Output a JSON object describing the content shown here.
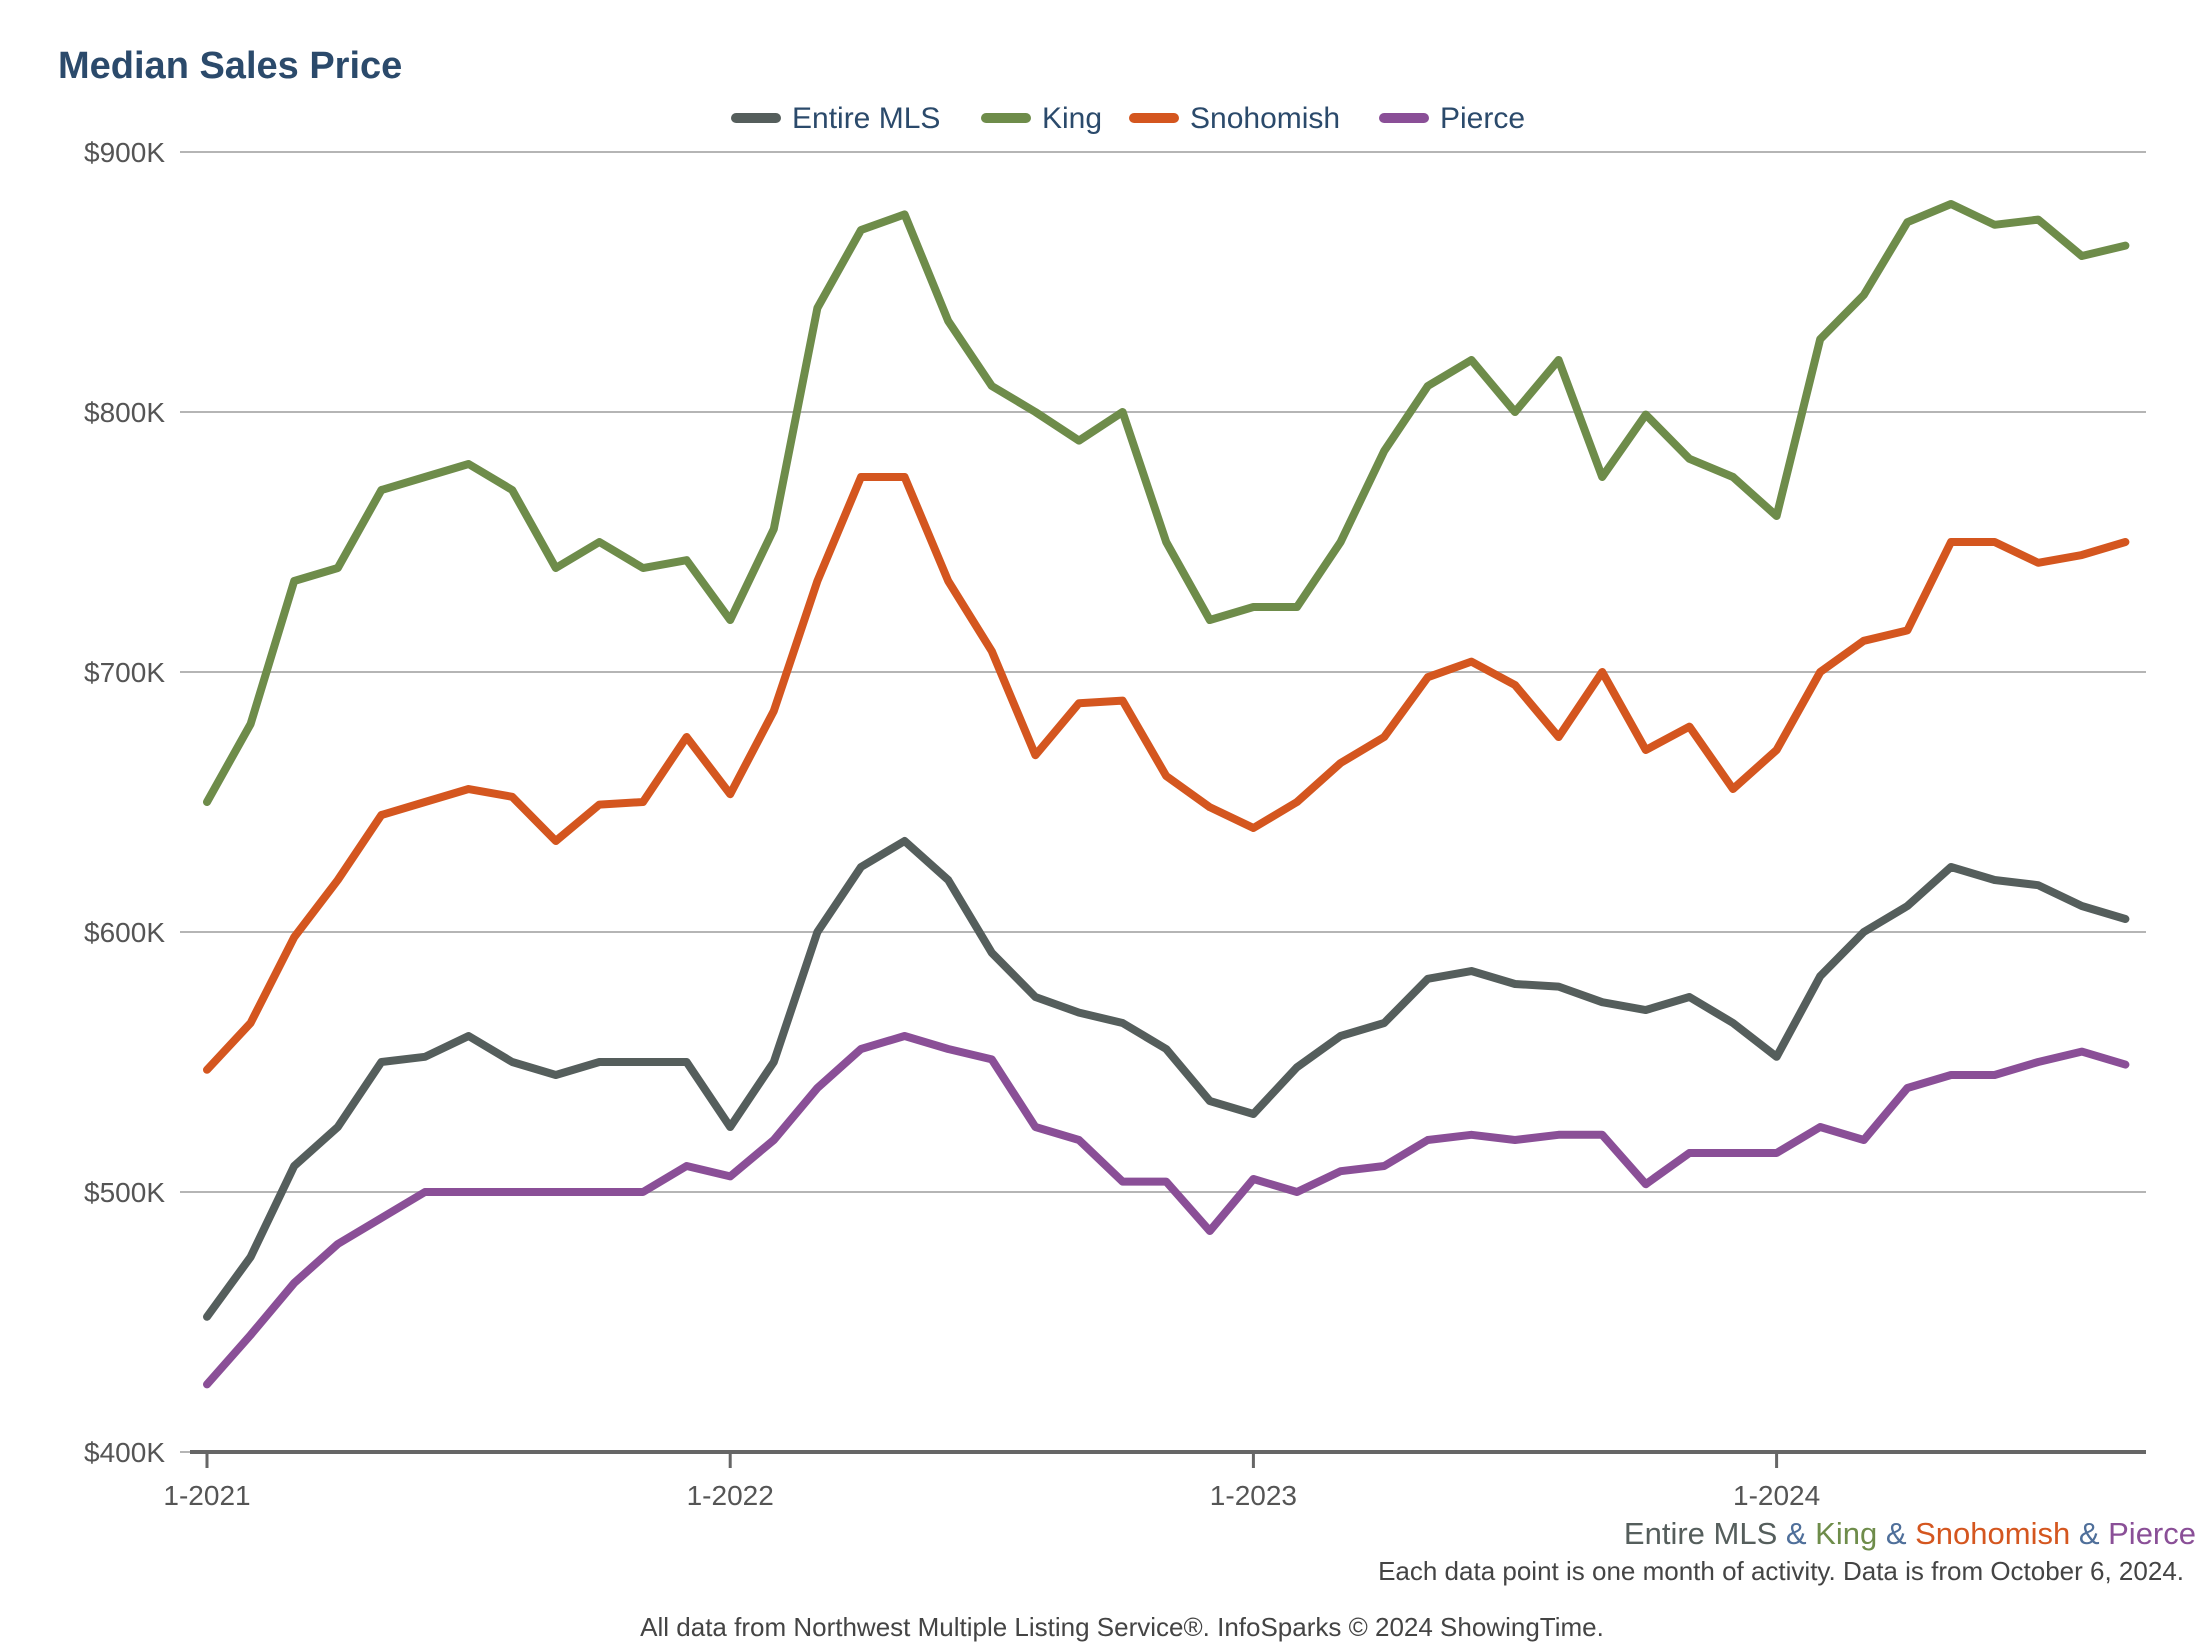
{
  "colors": {
    "title": "#2b4a6b",
    "grid": "#b5b5b5",
    "axis": "#666666",
    "amp": "#4f6f9a"
  },
  "chart_data": {
    "type": "line",
    "title": "Median Sales Price",
    "xlabel": "",
    "ylabel": "",
    "x_ticks": [
      "1-2021",
      "1-2022",
      "1-2023",
      "1-2024"
    ],
    "y_ticks": [
      "$900K",
      "$800K",
      "$700K",
      "$600K",
      "$500K",
      "$400K"
    ],
    "y_tick_values": [
      900000,
      800000,
      700000,
      600000,
      500000,
      400000
    ],
    "ylim": [
      400000,
      900000
    ],
    "x_start": "2021-01",
    "x_end": "2024-09",
    "grid": true,
    "legend_position": "top-center",
    "series": [
      {
        "name": "Entire MLS",
        "color": "#555e5c",
        "values": [
          452000,
          475000,
          510000,
          525000,
          550000,
          552000,
          560000,
          550000,
          545000,
          550000,
          550000,
          550000,
          525000,
          550000,
          600000,
          625000,
          635000,
          620000,
          592000,
          575000,
          569000,
          565000,
          555000,
          535000,
          530000,
          548000,
          560000,
          565000,
          582000,
          585000,
          580000,
          579000,
          573000,
          570000,
          575000,
          565000,
          552000,
          583000,
          600000,
          610000,
          625000,
          620000,
          618000,
          610000,
          605000
        ]
      },
      {
        "name": "King",
        "color": "#6e8c4a",
        "values": [
          650000,
          680000,
          735000,
          740000,
          770000,
          775000,
          780000,
          770000,
          740000,
          750000,
          740000,
          743000,
          720000,
          755000,
          840000,
          870000,
          876000,
          835000,
          810000,
          800000,
          789000,
          800000,
          750000,
          720000,
          725000,
          725000,
          750000,
          785000,
          810000,
          820000,
          800000,
          820000,
          775000,
          799000,
          782000,
          775000,
          760000,
          828000,
          845000,
          873000,
          880000,
          872000,
          874000,
          860000,
          864000
        ]
      },
      {
        "name": "Snohomish",
        "color": "#d4561f",
        "values": [
          547000,
          565000,
          598000,
          620000,
          645000,
          650000,
          655000,
          652000,
          635000,
          649000,
          650000,
          675000,
          653000,
          685000,
          735000,
          775000,
          775000,
          735000,
          708000,
          668000,
          688000,
          689000,
          660000,
          648000,
          640000,
          650000,
          665000,
          675000,
          698000,
          704000,
          695000,
          675000,
          700000,
          670000,
          679000,
          655000,
          670000,
          700000,
          712000,
          716000,
          750000,
          750000,
          742000,
          745000,
          750000
        ]
      },
      {
        "name": "Pierce",
        "color": "#8a4f97",
        "values": [
          426000,
          445000,
          465000,
          480000,
          490000,
          500000,
          500000,
          500000,
          500000,
          500000,
          500000,
          510000,
          506000,
          520000,
          540000,
          555000,
          560000,
          555000,
          551000,
          525000,
          520000,
          504000,
          504000,
          485000,
          505000,
          500000,
          508000,
          510000,
          520000,
          522000,
          520000,
          522000,
          522000,
          503000,
          515000,
          515000,
          515000,
          525000,
          520000,
          540000,
          545000,
          545000,
          550000,
          554000,
          549000
        ]
      }
    ]
  },
  "footer": {
    "amp": "&",
    "note": "Each data point is one month of activity. Data is from October 6, 2024.",
    "source": "All data from Northwest Multiple Listing Service®. InfoSparks © 2024 ShowingTime."
  }
}
